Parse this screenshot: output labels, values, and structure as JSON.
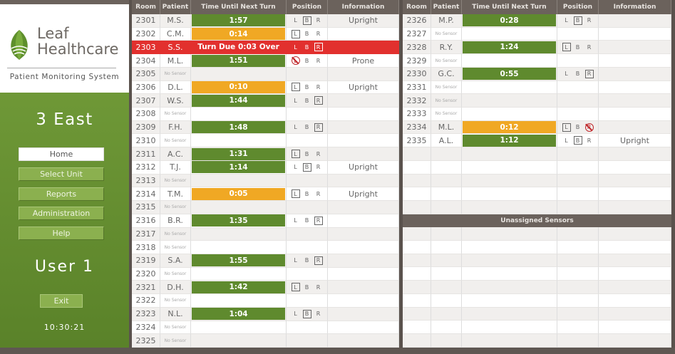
{
  "brand": {
    "line1": "Leaf",
    "line2": "Healthcare",
    "tagline": "Patient Monitoring System"
  },
  "unit": "3 East",
  "nav": [
    {
      "label": "Home",
      "active": true
    },
    {
      "label": "Select Unit"
    },
    {
      "label": "Reports"
    },
    {
      "label": "Administration"
    },
    {
      "label": "Help"
    }
  ],
  "user": "User 1",
  "exit_label": "Exit",
  "clock": "10:30:21",
  "colors": {
    "ok": "#5f8a2e",
    "warn": "#f0a824",
    "alarm": "#e2302e"
  },
  "headers": {
    "room": "Room",
    "patient": "Patient",
    "time": "Time Until Next Turn",
    "position": "Position",
    "info": "Information"
  },
  "no_sensor": "No Sensor",
  "unassigned_title": "Unassigned Sensors",
  "left_rows": [
    {
      "room": "2301",
      "patient": "M.S.",
      "time": "1:57",
      "status": "ok",
      "pos": "B",
      "info": "Upright"
    },
    {
      "room": "2302",
      "patient": "C.M.",
      "time": "0:14",
      "status": "warn",
      "pos": "L"
    },
    {
      "room": "2303",
      "patient": "S.S.",
      "time": "Turn Due 0:03 Over",
      "status": "alarm",
      "pos": "R"
    },
    {
      "room": "2304",
      "patient": "M.L.",
      "time": "1:51",
      "status": "ok",
      "alert": "L",
      "info": "Prone"
    },
    {
      "room": "2305"
    },
    {
      "room": "2306",
      "patient": "D.L.",
      "time": "0:10",
      "status": "warn",
      "pos": "L",
      "info": "Upright"
    },
    {
      "room": "2307",
      "patient": "W.S.",
      "time": "1:44",
      "status": "ok",
      "pos": "R"
    },
    {
      "room": "2308"
    },
    {
      "room": "2309",
      "patient": "F.H.",
      "time": "1:48",
      "status": "ok",
      "pos": "R"
    },
    {
      "room": "2310"
    },
    {
      "room": "2311",
      "patient": "A.C.",
      "time": "1:31",
      "status": "ok",
      "pos": "L"
    },
    {
      "room": "2312",
      "patient": "T.J.",
      "time": "1:14",
      "status": "ok",
      "pos": "B",
      "info": "Upright"
    },
    {
      "room": "2313"
    },
    {
      "room": "2314",
      "patient": "T.M.",
      "time": "0:05",
      "status": "warn",
      "pos": "L",
      "info": "Upright"
    },
    {
      "room": "2315"
    },
    {
      "room": "2316",
      "patient": "B.R.",
      "time": "1:35",
      "status": "ok",
      "pos": "R"
    },
    {
      "room": "2317"
    },
    {
      "room": "2318"
    },
    {
      "room": "2319",
      "patient": "S.A.",
      "time": "1:55",
      "status": "ok",
      "pos": "R"
    },
    {
      "room": "2320"
    },
    {
      "room": "2321",
      "patient": "D.H.",
      "time": "1:42",
      "status": "ok",
      "pos": "L"
    },
    {
      "room": "2322"
    },
    {
      "room": "2323",
      "patient": "N.L.",
      "time": "1:04",
      "status": "ok",
      "pos": "B"
    },
    {
      "room": "2324"
    },
    {
      "room": "2325"
    }
  ],
  "right_rows": [
    {
      "room": "2326",
      "patient": "M.P.",
      "time": "0:28",
      "status": "ok",
      "pos": "B"
    },
    {
      "room": "2327"
    },
    {
      "room": "2328",
      "patient": "R.Y.",
      "time": "1:24",
      "status": "ok",
      "pos": "L"
    },
    {
      "room": "2329"
    },
    {
      "room": "2330",
      "patient": "G.C.",
      "time": "0:55",
      "status": "ok",
      "pos": "R"
    },
    {
      "room": "2331"
    },
    {
      "room": "2332"
    },
    {
      "room": "2333"
    },
    {
      "room": "2334",
      "patient": "M.L.",
      "time": "0:12",
      "status": "warn",
      "pos": "L",
      "alert": "R"
    },
    {
      "room": "2335",
      "patient": "A.L.",
      "time": "1:12",
      "status": "ok",
      "pos": "B",
      "info": "Upright"
    }
  ],
  "position_letters": [
    "L",
    "B",
    "R"
  ]
}
